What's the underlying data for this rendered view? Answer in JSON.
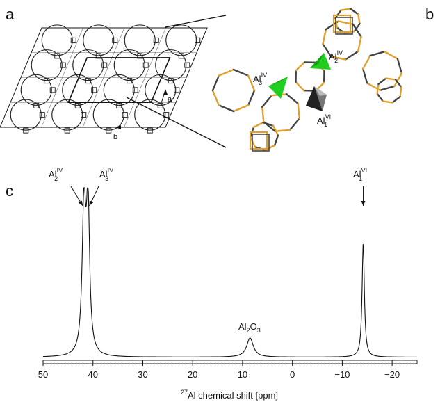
{
  "panels": {
    "a": "a",
    "b": "b",
    "c": "c"
  },
  "lattice": {
    "axis_a": "a",
    "axis_b": "b"
  },
  "cluster": {
    "labels": [
      {
        "main": "Al",
        "sub": "3",
        "sup": "IV"
      },
      {
        "main": "Al",
        "sub": "2",
        "sup": "IV"
      },
      {
        "main": "Al",
        "sub": "1",
        "sup": "VI"
      }
    ],
    "colors": {
      "tetrahedron": "#1fce1f",
      "octahedron": "#777777",
      "frame_orange": "#e0a030",
      "frame_dark": "#444444"
    }
  },
  "chart_data": {
    "type": "line",
    "xlabel_prefix_sup": "27",
    "xlabel_main": "Al chemical shift [ppm]",
    "xlim": [
      50,
      -25
    ],
    "xticks": [
      50,
      40,
      30,
      20,
      10,
      0,
      -10,
      -20
    ],
    "xtick_labels": [
      "50",
      "40",
      "30",
      "20",
      "10",
      "0",
      "−10",
      "−20"
    ],
    "ylim": [
      0,
      1.08
    ],
    "peaks": [
      {
        "position": 41.8,
        "height": 0.93,
        "width": 0.85
      },
      {
        "position": 41.0,
        "height": 0.9,
        "width": 0.8
      },
      {
        "position": 8.5,
        "height": 0.12,
        "width": 1.6
      },
      {
        "position": -14.2,
        "height": 0.72,
        "width": 0.55
      }
    ],
    "annotations": [
      {
        "id": "al2",
        "main": "Al",
        "sub": "2",
        "sup": "IV",
        "x": 41.9
      },
      {
        "id": "al3",
        "main": "Al",
        "sub": "3",
        "sup": "IV",
        "x": 41.0
      },
      {
        "id": "al1",
        "main": "Al",
        "sub": "1",
        "sup": "VI",
        "x": -14.2
      },
      {
        "id": "al2o3",
        "main": "Al",
        "sub1": "2",
        "main2": "O",
        "sub2": "3",
        "x": 8.5
      }
    ],
    "grid": false,
    "legend": "none"
  }
}
